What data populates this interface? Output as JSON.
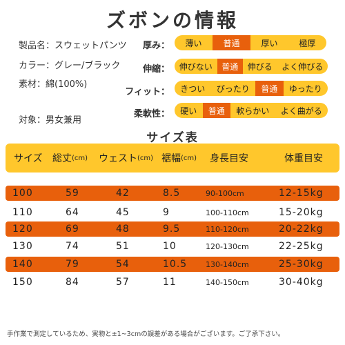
{
  "title": "ズボンの情報",
  "info": {
    "product_name": "製品名：スウェットパンツ",
    "color": "カラー：グレー/ブラック",
    "material": "素材：綿(100%)",
    "target": "対象：男女兼用"
  },
  "ratings": [
    {
      "label": "厚み：",
      "options": [
        "薄い",
        "普通",
        "厚い",
        "極厚"
      ],
      "selected_index": 1
    },
    {
      "label": "伸縮：",
      "options": [
        "伸びない",
        "普通",
        "伸びる",
        "よく伸びる"
      ],
      "selected_index": 1
    },
    {
      "label": "フィット：",
      "options": [
        "きつい",
        "ぴったり",
        "普通",
        "ゆったり"
      ],
      "selected_index": 2
    },
    {
      "label": "柔軟性：",
      "options": [
        "硬い",
        "普通",
        "軟らかい",
        "よく曲がる"
      ],
      "selected_index": 1
    }
  ],
  "size_table": {
    "title": "サイズ表",
    "headers": [
      {
        "text": "サイズ",
        "unit": ""
      },
      {
        "text": "総丈",
        "unit": "(cm)"
      },
      {
        "text": "ウェスト",
        "unit": "(cm)"
      },
      {
        "text": "裾幅",
        "unit": "(cm)"
      },
      {
        "text": "身長目安",
        "unit": ""
      },
      {
        "text": "体重目安",
        "unit": ""
      }
    ],
    "rows": [
      [
        "100",
        "59",
        "42",
        "8.5",
        "90-100cm",
        "12-15kg"
      ],
      [
        "110",
        "64",
        "45",
        "9",
        "100-110cm",
        "15-20kg"
      ],
      [
        "120",
        "69",
        "48",
        "9.5",
        "110-120cm",
        "20-22kg"
      ],
      [
        "130",
        "74",
        "51",
        "10",
        "120-130cm",
        "22-25kg"
      ],
      [
        "140",
        "79",
        "54",
        "10.5",
        "130-140cm",
        "25-30kg"
      ],
      [
        "150",
        "84",
        "57",
        "11",
        "140-150cm",
        "30-40kg"
      ]
    ],
    "highlighted_rows": [
      0,
      2,
      4
    ]
  },
  "note": "手作業で測定しているため、実物と±1~3cmの誤差がある場合がございます。ご了承下さい。",
  "colors": {
    "accent_yellow": "#ffc72c",
    "accent_orange": "#e8600c",
    "text": "#333333"
  }
}
